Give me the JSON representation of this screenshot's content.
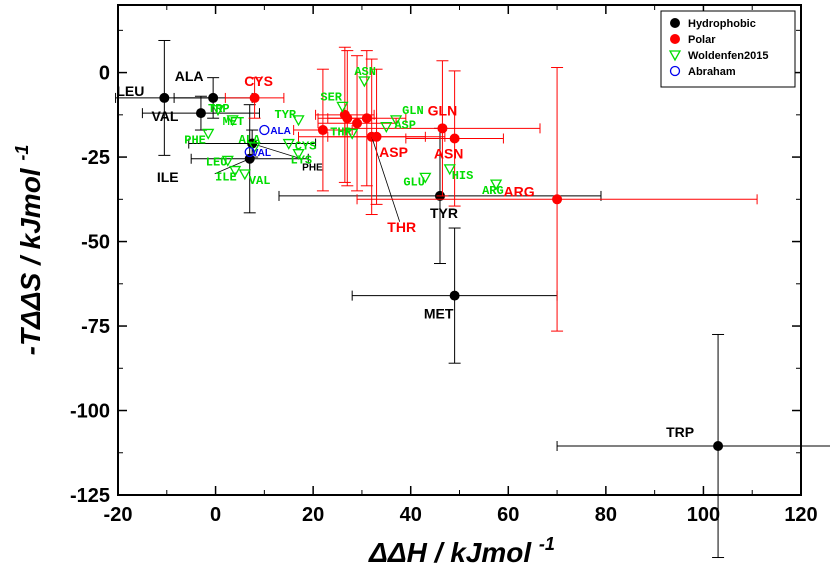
{
  "chart_data": {
    "type": "scatter",
    "xlabel": "ΔΔH / kJmol",
    "xlabel_sup": "-1",
    "ylabel": "-TΔΔS / kJmol",
    "ylabel_sup": "-1",
    "xlim": [
      -20,
      120
    ],
    "ylim": [
      -125,
      20
    ],
    "xticks": [
      -20,
      0,
      20,
      40,
      60,
      80,
      100,
      120
    ],
    "yticks": [
      0,
      -25,
      -50,
      -75,
      -100,
      -125
    ],
    "legend_position": "top-right",
    "colors": {
      "Hydrophobic": "#000000",
      "Polar": "#ff0000",
      "Woldenfen2015": "#00dd00",
      "Abraham": "#0000ee"
    },
    "series": [
      {
        "name": "Hydrophobic",
        "marker": "filled-circle",
        "points": [
          {
            "label": "LEU",
            "x": -10.5,
            "y": -7.5,
            "xerr": 10,
            "yerr": 17
          },
          {
            "label": "ALA",
            "x": -0.5,
            "y": -7.5,
            "xerr": 8,
            "yerr": 6
          },
          {
            "label": "VAL",
            "x": -3,
            "y": -12,
            "xerr": 12,
            "yerr": 5
          },
          {
            "label": "ILE",
            "x": 7,
            "y": -25.5,
            "xerr": 12,
            "yerr": 16
          },
          {
            "label": "PHE",
            "x": 7.5,
            "y": -21,
            "xerr": 13,
            "yerr": 4
          },
          {
            "label": "TYR",
            "x": 46,
            "y": -36.5,
            "xerr": 33,
            "yerr": 20
          },
          {
            "label": "MET",
            "x": 49,
            "y": -66,
            "xerr": 21,
            "yerr": 20
          },
          {
            "label": "TRP",
            "x": 103,
            "y": -110.5,
            "xerr": 33,
            "yerr": 33
          }
        ]
      },
      {
        "name": "Polar",
        "marker": "filled-circle",
        "points": [
          {
            "label": "CYS",
            "x": 8,
            "y": -7.5,
            "xerr": 6,
            "yerr": 6
          },
          {
            "label": "",
            "x": 22,
            "y": -17,
            "xerr": 6,
            "yerr": 18
          },
          {
            "label": "",
            "x": 26.5,
            "y": -12.5,
            "xerr": 6,
            "yerr": 20
          },
          {
            "label": "",
            "x": 27,
            "y": -13.5,
            "xerr": 6,
            "yerr": 20
          },
          {
            "label": "",
            "x": 29,
            "y": -15,
            "xerr": 8,
            "yerr": 20
          },
          {
            "label": "",
            "x": 31,
            "y": -13.5,
            "xerr": 8,
            "yerr": 20
          },
          {
            "label": "THR",
            "x": 32,
            "y": -19,
            "xerr": 15,
            "yerr": 23
          },
          {
            "label": "GLN",
            "x": 46.5,
            "y": -16.5,
            "xerr": 20,
            "yerr": 20
          },
          {
            "label": "ASP",
            "x": 33,
            "y": -19,
            "xerr": 10,
            "yerr": 20
          },
          {
            "label": "ASN",
            "x": 49,
            "y": -19.5,
            "xerr": 10,
            "yerr": 20
          },
          {
            "label": "ARG",
            "x": 70,
            "y": -37.5,
            "xerr": 41,
            "yerr": 39
          }
        ]
      },
      {
        "name": "Woldenfen2015",
        "marker": "open-triangle-down",
        "points": [
          {
            "label": "ASN",
            "x": 30.5,
            "y": -2.5
          },
          {
            "label": "SER",
            "x": 26,
            "y": -10
          },
          {
            "label": "GLN",
            "x": 37,
            "y": -14
          },
          {
            "label": "ASP",
            "x": 35,
            "y": -16
          },
          {
            "label": "THR",
            "x": 28,
            "y": -18
          },
          {
            "label": "TRP",
            "x": 0.5,
            "y": -11
          },
          {
            "label": "MET",
            "x": 3.5,
            "y": -14
          },
          {
            "label": "TYR",
            "x": 17,
            "y": -14
          },
          {
            "label": "PHE",
            "x": -1.5,
            "y": -18
          },
          {
            "label": "ALA",
            "x": 8,
            "y": -22
          },
          {
            "label": "CYS",
            "x": 15,
            "y": -21
          },
          {
            "label": "LYS",
            "x": 17,
            "y": -24
          },
          {
            "label": "LEU",
            "x": 2.5,
            "y": -26
          },
          {
            "label": "ILE",
            "x": 4,
            "y": -29
          },
          {
            "label": "VAL",
            "x": 6,
            "y": -30
          },
          {
            "label": "GLU",
            "x": 43,
            "y": -31
          },
          {
            "label": "HIS",
            "x": 48,
            "y": -28.5
          },
          {
            "label": "ARG",
            "x": 57.5,
            "y": -33
          }
        ]
      },
      {
        "name": "Abraham",
        "marker": "open-circle",
        "points": [
          {
            "label": "ALA",
            "x": 10,
            "y": -17
          },
          {
            "label": "VAL",
            "x": 7,
            "y": -23.5
          }
        ]
      }
    ]
  }
}
